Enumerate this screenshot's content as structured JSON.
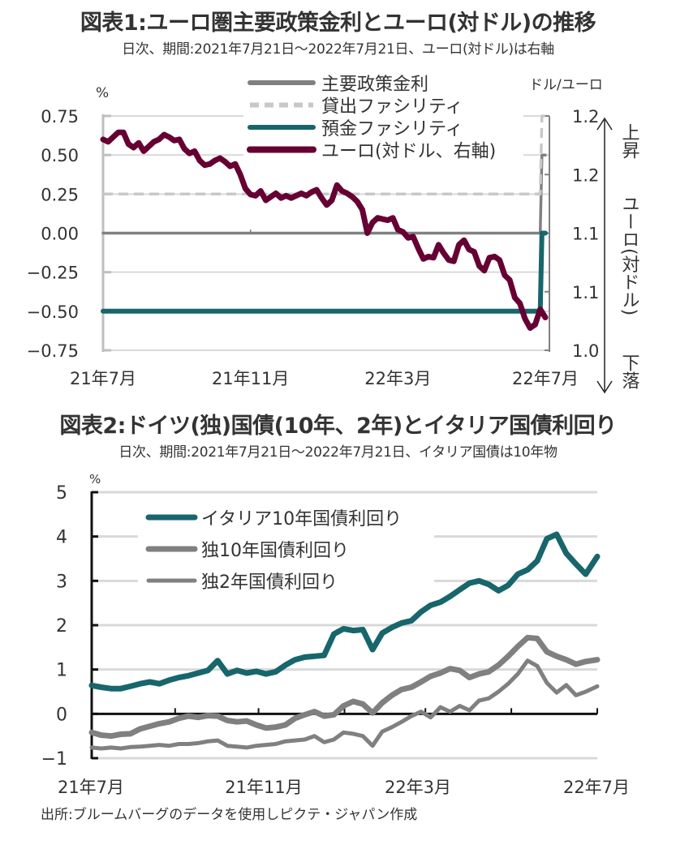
{
  "chart_data": [
    {
      "type": "line",
      "title": "図表1:ユーロ圏主要政策金利とユーロ(対ドル)の推移",
      "subtitle": "日次、期間:2021年7月21日～2022年7月21日、ユーロ(対ドル)は右軸",
      "ylabel": "%",
      "ylabel_right": "ドル/ユーロ",
      "ylim": [
        -0.75,
        0.75
      ],
      "ylim_right": [
        1.0,
        1.2
      ],
      "yticks": [
        "0.75",
        "0.50",
        "0.25",
        "0.00",
        "-0.25",
        "-0.50",
        "-0.75"
      ],
      "yticks_right": [
        "1.2",
        "1.2",
        "1.1",
        "1.1",
        "1.0"
      ],
      "xtick_labels": [
        "21年7月",
        "21年11月",
        "22年3月",
        "22年7月"
      ],
      "right_axis_annotation": {
        "up": "上昇",
        "middle": "ユーロ(対ドル)",
        "down": "下落"
      },
      "grid": true,
      "legend": "top-right",
      "x_count": 262,
      "series": [
        {
          "name": "主要政策金利",
          "color": "#808080",
          "style": "solid",
          "axis": "left",
          "x": [
            0,
            258,
            259,
            261
          ],
          "values": [
            0.0,
            0.0,
            0.5,
            0.5
          ]
        },
        {
          "name": "貸出ファシリティ",
          "color": "#c8c8c8",
          "style": "dashed",
          "axis": "left",
          "x": [
            0,
            258,
            259,
            261
          ],
          "values": [
            0.25,
            0.25,
            0.75,
            0.75
          ]
        },
        {
          "name": "預金ファシリティ",
          "color": "#17666b",
          "style": "solid",
          "axis": "left",
          "x": [
            0,
            258,
            259,
            261
          ],
          "values": [
            -0.5,
            -0.5,
            0.0,
            0.0
          ]
        },
        {
          "name": "ユーロ(対ドル、右軸)",
          "color": "#660033",
          "style": "solid",
          "axis": "right",
          "x": [
            0,
            3,
            6,
            9,
            12,
            15,
            18,
            21,
            24,
            27,
            30,
            33,
            36,
            39,
            42,
            45,
            48,
            51,
            54,
            57,
            60,
            63,
            66,
            69,
            72,
            75,
            78,
            81,
            84,
            87,
            90,
            93,
            96,
            99,
            102,
            105,
            108,
            111,
            114,
            117,
            120,
            123,
            126,
            129,
            132,
            135,
            138,
            141,
            144,
            147,
            150,
            153,
            156,
            159,
            162,
            165,
            168,
            171,
            174,
            177,
            180,
            183,
            186,
            189,
            192,
            195,
            198,
            201,
            204,
            207,
            210,
            213,
            216,
            219,
            222,
            225,
            228,
            231,
            234,
            237,
            240,
            243,
            246,
            249,
            252,
            255,
            258,
            261
          ],
          "values": [
            1.18,
            1.178,
            1.182,
            1.186,
            1.186,
            1.176,
            1.173,
            1.177,
            1.17,
            1.174,
            1.178,
            1.18,
            1.184,
            1.182,
            1.179,
            1.18,
            1.172,
            1.168,
            1.17,
            1.162,
            1.158,
            1.159,
            1.162,
            1.164,
            1.161,
            1.157,
            1.159,
            1.15,
            1.138,
            1.133,
            1.132,
            1.136,
            1.128,
            1.131,
            1.134,
            1.13,
            1.132,
            1.13,
            1.132,
            1.134,
            1.132,
            1.135,
            1.137,
            1.13,
            1.124,
            1.128,
            1.141,
            1.136,
            1.134,
            1.131,
            1.127,
            1.12,
            1.1,
            1.109,
            1.113,
            1.112,
            1.111,
            1.113,
            1.103,
            1.101,
            1.096,
            1.097,
            1.087,
            1.078,
            1.08,
            1.079,
            1.09,
            1.083,
            1.077,
            1.076,
            1.09,
            1.094,
            1.086,
            1.084,
            1.072,
            1.068,
            1.079,
            1.08,
            1.077,
            1.064,
            1.06,
            1.045,
            1.04,
            1.027,
            1.019,
            1.022,
            1.035,
            1.028
          ]
        }
      ]
    },
    {
      "type": "line",
      "title": "図表2:ドイツ(独)国債(10年、2年)とイタリア国債利回り",
      "subtitle": "日次、期間:2021年7月21日～2022年7月21日、イタリア国債は10年物",
      "ylabel": "%",
      "ylim": [
        -1,
        5
      ],
      "yticks": [
        "5",
        "4",
        "3",
        "2",
        "1",
        "0",
        "-1"
      ],
      "xtick_labels": [
        "21年7月",
        "21年11月",
        "22年3月",
        "22年7月"
      ],
      "grid": true,
      "legend": "top-left",
      "x_count": 262,
      "series": [
        {
          "name": "イタリア10年国債利回り",
          "color": "#17666b",
          "x": [
            0,
            5,
            10,
            15,
            20,
            25,
            30,
            35,
            40,
            45,
            50,
            55,
            60,
            65,
            70,
            75,
            80,
            85,
            90,
            95,
            100,
            105,
            110,
            115,
            120,
            125,
            130,
            135,
            140,
            145,
            150,
            155,
            160,
            165,
            170,
            175,
            180,
            185,
            190,
            195,
            200,
            205,
            210,
            215,
            220,
            225,
            230,
            235,
            240,
            245,
            250,
            255,
            261
          ],
          "values": [
            0.64,
            0.6,
            0.57,
            0.57,
            0.62,
            0.68,
            0.72,
            0.68,
            0.76,
            0.82,
            0.86,
            0.92,
            0.98,
            1.2,
            0.9,
            0.98,
            0.92,
            0.96,
            0.9,
            0.95,
            1.1,
            1.22,
            1.28,
            1.3,
            1.32,
            1.8,
            1.92,
            1.88,
            1.9,
            1.45,
            1.82,
            1.95,
            2.05,
            2.1,
            2.3,
            2.45,
            2.52,
            2.65,
            2.8,
            2.95,
            3.0,
            2.92,
            2.78,
            2.9,
            3.15,
            3.25,
            3.45,
            3.95,
            4.05,
            3.62,
            3.38,
            3.15,
            3.55
          ]
        },
        {
          "name": "独10年国債利回り",
          "color": "#808080",
          "x": [
            0,
            5,
            10,
            15,
            20,
            25,
            30,
            35,
            40,
            45,
            50,
            55,
            60,
            65,
            70,
            75,
            80,
            85,
            90,
            95,
            100,
            105,
            110,
            115,
            120,
            125,
            130,
            135,
            140,
            145,
            150,
            155,
            160,
            165,
            170,
            175,
            180,
            185,
            190,
            195,
            200,
            205,
            210,
            215,
            220,
            225,
            230,
            235,
            240,
            245,
            250,
            255,
            261
          ],
          "values": [
            -0.42,
            -0.48,
            -0.5,
            -0.46,
            -0.45,
            -0.34,
            -0.28,
            -0.22,
            -0.18,
            -0.1,
            -0.05,
            -0.08,
            -0.04,
            -0.05,
            -0.15,
            -0.18,
            -0.16,
            -0.25,
            -0.32,
            -0.3,
            -0.25,
            -0.1,
            -0.02,
            0.05,
            -0.05,
            -0.02,
            0.18,
            0.28,
            0.22,
            0.02,
            0.25,
            0.42,
            0.55,
            0.6,
            0.72,
            0.85,
            0.92,
            1.02,
            0.98,
            0.82,
            0.9,
            0.95,
            1.1,
            1.3,
            1.52,
            1.72,
            1.7,
            1.4,
            1.3,
            1.22,
            1.12,
            1.18,
            1.22
          ]
        },
        {
          "name": "独2年国債利回り",
          "color": "#808080",
          "x": [
            0,
            5,
            10,
            15,
            20,
            25,
            30,
            35,
            40,
            45,
            50,
            55,
            60,
            65,
            70,
            75,
            80,
            85,
            90,
            95,
            100,
            105,
            110,
            115,
            120,
            125,
            130,
            135,
            140,
            145,
            150,
            155,
            160,
            165,
            170,
            175,
            180,
            185,
            190,
            195,
            200,
            205,
            210,
            215,
            220,
            225,
            230,
            235,
            240,
            245,
            250,
            255,
            261
          ],
          "values": [
            -0.76,
            -0.78,
            -0.76,
            -0.78,
            -0.75,
            -0.74,
            -0.72,
            -0.7,
            -0.72,
            -0.68,
            -0.68,
            -0.66,
            -0.62,
            -0.6,
            -0.72,
            -0.74,
            -0.76,
            -0.72,
            -0.7,
            -0.68,
            -0.62,
            -0.6,
            -0.58,
            -0.5,
            -0.64,
            -0.58,
            -0.42,
            -0.45,
            -0.5,
            -0.72,
            -0.4,
            -0.3,
            -0.18,
            -0.05,
            0.05,
            -0.08,
            0.15,
            0.05,
            0.18,
            0.08,
            0.3,
            0.35,
            0.5,
            0.68,
            0.9,
            1.2,
            1.08,
            0.7,
            0.48,
            0.65,
            0.42,
            0.5,
            0.62
          ]
        }
      ]
    }
  ],
  "source": "出所:ブルームバーグのデータを使用しピクテ・ジャパン作成"
}
